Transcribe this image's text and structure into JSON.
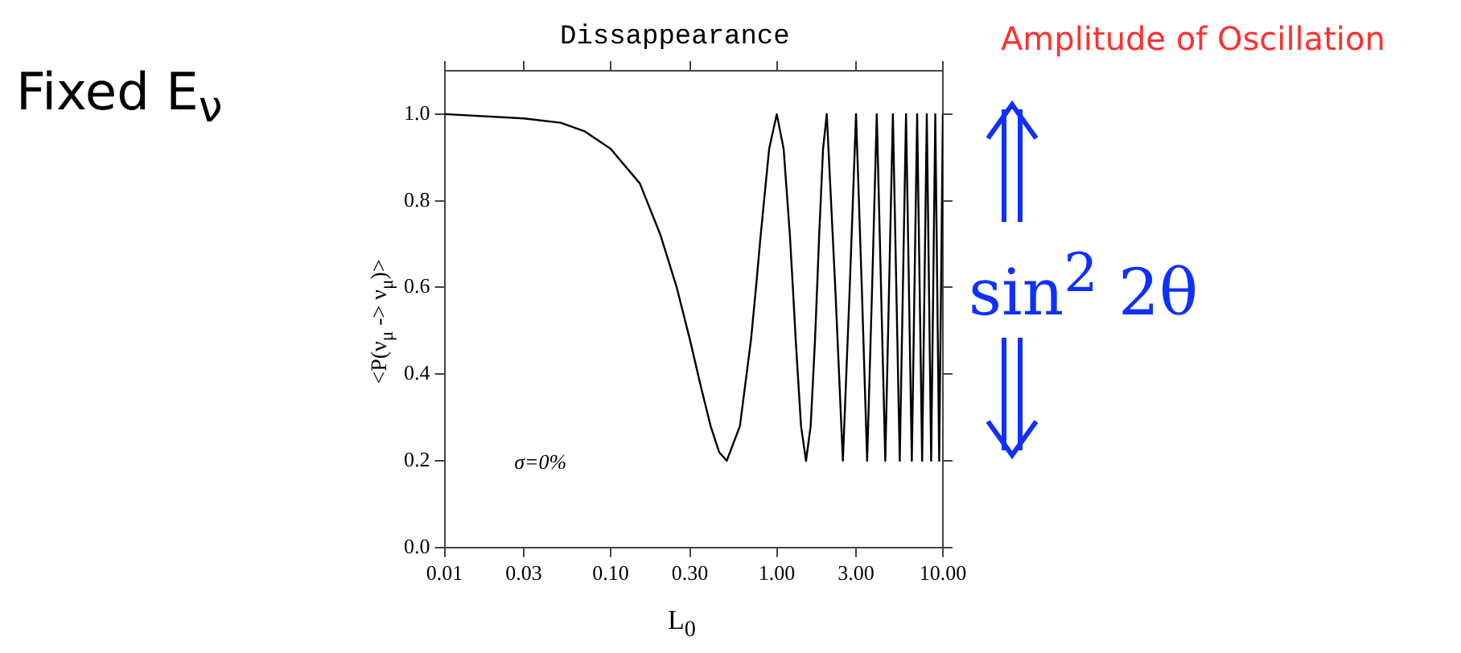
{
  "chart_data": {
    "type": "line",
    "title": "Dissappearance",
    "xlabel": "L$_{0}$",
    "ylabel": "<P(ν$_{μ}$ -> ν$_{μ}$)>",
    "log": "x",
    "grid": false,
    "legend": false,
    "marker": "none",
    "line_style": "solid",
    "xlim": [
      0.01,
      10
    ],
    "xticks": [
      {
        "value": 0.01,
        "label": "0.01"
      },
      {
        "value": 0.03,
        "label": "0.03"
      },
      {
        "value": 0.1,
        "label": "0.10"
      },
      {
        "value": 0.3,
        "label": "0.30"
      },
      {
        "value": 1,
        "label": "1.00"
      },
      {
        "value": 3,
        "label": "3.00"
      },
      {
        "value": 10,
        "label": "10.00"
      }
    ],
    "ylim": [
      0,
      1.1
    ],
    "yticks": [
      {
        "value": 0,
        "label": "0.0"
      },
      {
        "value": 0.2,
        "label": "0.2"
      },
      {
        "value": 0.4,
        "label": "0.4"
      },
      {
        "value": 0.6,
        "label": "0.6"
      },
      {
        "value": 0.8,
        "label": "0.8"
      },
      {
        "value": 1,
        "label": "1.0"
      }
    ],
    "annotations": [
      "σ=0%",
      "Fixed E$_{ν}$",
      "Amplitude of Oscillation",
      "sin$^{2}$ 2θ"
    ],
    "series": [
      {
        "color": "#000000",
        "x": [
          0.01,
          0.03,
          0.05,
          0.07,
          0.1,
          0.15,
          0.2,
          0.25,
          0.3,
          0.35,
          0.4,
          0.45,
          0.5,
          0.6,
          0.7,
          0.75,
          0.8,
          0.9,
          1,
          1.1,
          1.2,
          1.25,
          1.3,
          1.4,
          1.5,
          1.6,
          1.7,
          1.75,
          1.8,
          1.9,
          2,
          2.25,
          2.5,
          2.75,
          3,
          3.25,
          3.5,
          3.75,
          4,
          4.5,
          5,
          5.5,
          6,
          6.5,
          7,
          7.5,
          8,
          8.5,
          9,
          9.5,
          10
        ],
        "values": [
          1,
          0.99,
          0.98,
          0.96,
          0.92,
          0.84,
          0.72,
          0.6,
          0.48,
          0.37,
          0.28,
          0.22,
          0.2,
          0.28,
          0.48,
          0.6,
          0.72,
          0.92,
          1,
          0.92,
          0.72,
          0.6,
          0.48,
          0.28,
          0.2,
          0.28,
          0.48,
          0.6,
          0.72,
          0.92,
          1,
          0.6,
          0.2,
          0.6,
          1,
          0.6,
          0.2,
          0.6,
          1,
          0.2,
          1,
          0.2,
          1,
          0.2,
          1,
          0.2,
          1,
          0.2,
          1,
          0.2,
          1
        ]
      }
    ]
  }
}
